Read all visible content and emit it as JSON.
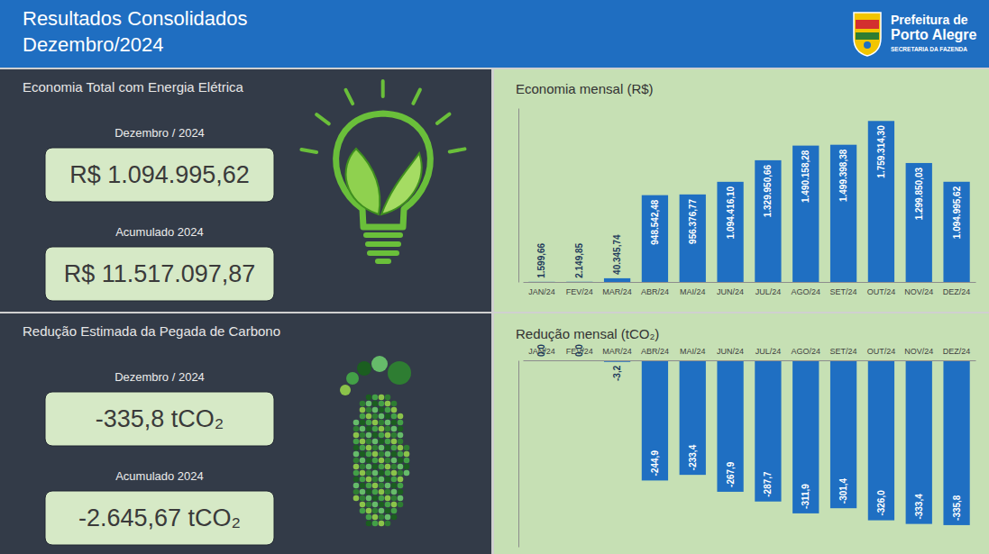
{
  "header": {
    "title": "Resultados Consolidados",
    "subtitle": "Dezembro/2024",
    "logo_line1": "Prefeitura de",
    "logo_line2": "Porto Alegre",
    "logo_line3": "SECRETARIA DA FAZENDA"
  },
  "kpi_panels": [
    {
      "title": "Economia Total com Energia Elétrica",
      "items": [
        {
          "label": "Dezembro / 2024",
          "value": "R$ 1.094.995,62"
        },
        {
          "label": "Acumulado 2024",
          "value": "R$ 11.517.097,87"
        }
      ]
    },
    {
      "title": "Redução Estimada da Pegada de Carbono",
      "items": [
        {
          "label": "Dezembro / 2024",
          "value": "-335,8 tCO₂"
        },
        {
          "label": "Acumulado 2024",
          "value": "-2.645,67 tCO₂"
        }
      ]
    }
  ],
  "chart_data": [
    {
      "type": "bar",
      "title": "Economia mensal (R$)",
      "categories": [
        "JAN/24",
        "FEV/24",
        "MAR/24",
        "ABR/24",
        "MAI/24",
        "JUN/24",
        "JUL/24",
        "AGO/24",
        "SET/24",
        "OUT/24",
        "NOV/24",
        "DEZ/24"
      ],
      "values": [
        1599.66,
        2149.85,
        40345.74,
        948542.48,
        956376.77,
        1094416.1,
        1329950.66,
        1490158.28,
        1499398.38,
        1759314.3,
        1299850.03,
        1094995.62
      ],
      "value_labels": [
        "1.599,66",
        "2.149,85",
        "40.345,74",
        "948.542,48",
        "956.376,77",
        "1.094.416,10",
        "1.329.950,66",
        "1.490.158,28",
        "1.499.398,38",
        "1.759.314,30",
        "1.299.850,03",
        "1.094.995,62"
      ],
      "color": "#1f6fc2",
      "ylim": [
        0,
        1900000
      ],
      "grid": false,
      "data_labels": true,
      "tick_labels": "x"
    },
    {
      "type": "bar",
      "title": "Redução mensal (tCO₂)",
      "categories": [
        "JAN/24",
        "FEV/24",
        "MAR/24",
        "ABR/24",
        "MAI/24",
        "JUN/24",
        "JUL/24",
        "AGO/24",
        "SET/24",
        "OUT/24",
        "NOV/24",
        "DEZ/24"
      ],
      "values": [
        0,
        0,
        -3.2,
        -244.9,
        -233.4,
        -267.9,
        -287.7,
        -311.9,
        -301.4,
        -326,
        -333.4,
        -335.8
      ],
      "value_labels": [
        "0,0",
        "0,0",
        "-3,2",
        "-244,9",
        "-233,4",
        "-267,9",
        "-287,7",
        "-311,9",
        "-301,4",
        "-326,0",
        "-333,4",
        "-335,8"
      ],
      "color": "#1f6fc2",
      "ylim": [
        -380,
        0
      ],
      "grid": false,
      "data_labels": true,
      "tick_labels": "x"
    }
  ]
}
